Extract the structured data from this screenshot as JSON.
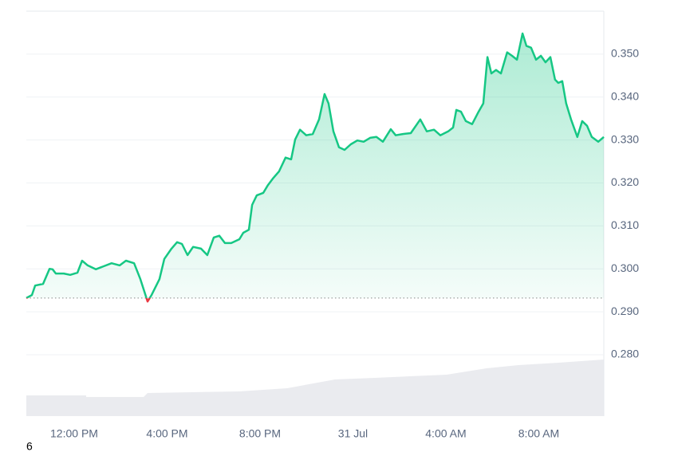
{
  "chart_data": {
    "type": "line",
    "x": [
      9.94,
      10.18,
      10.32,
      10.66,
      10.94,
      11.07,
      11.21,
      11.55,
      11.83,
      12.14,
      12.34,
      12.58,
      12.93,
      13.27,
      13.61,
      13.96,
      14.23,
      14.58,
      14.85,
      15.16,
      15.33,
      15.67,
      15.88,
      16.19,
      16.43,
      16.64,
      16.88,
      17.12,
      17.46,
      17.73,
      18.01,
      18.25,
      18.49,
      18.76,
      19.11,
      19.28,
      19.52,
      19.66,
      19.86,
      20.14,
      20.34,
      20.55,
      20.82,
      21.1,
      21.34,
      21.51,
      21.72,
      21.99,
      22.27,
      22.54,
      22.78,
      22.95,
      23.16,
      23.4,
      23.64,
      23.91,
      24.19,
      24.46,
      24.74,
      25.01,
      25.29,
      25.63,
      25.84,
      26.15,
      26.49,
      26.9,
      27.18,
      27.49,
      27.76,
      28.1,
      28.31,
      28.45,
      28.65,
      28.86,
      29.13,
      29.41,
      29.61,
      29.79,
      29.96,
      30.16,
      30.37,
      30.64,
      30.85,
      31.06,
      31.3,
      31.47,
      31.67,
      31.88,
      32.09,
      32.29,
      32.5,
      32.7,
      32.84,
      33.01,
      33.18,
      33.39,
      33.66,
      33.87,
      34.08,
      34.28,
      34.56,
      34.8
    ],
    "values": [
      0.2932,
      0.2939,
      0.2961,
      0.2965,
      0.3,
      0.2999,
      0.2989,
      0.2989,
      0.2986,
      0.2991,
      0.3019,
      0.3008,
      0.2999,
      0.3006,
      0.3013,
      0.3008,
      0.3019,
      0.3013,
      0.2976,
      0.2924,
      0.2939,
      0.2976,
      0.3023,
      0.3047,
      0.3062,
      0.3058,
      0.3032,
      0.3051,
      0.3047,
      0.3032,
      0.3073,
      0.3077,
      0.306,
      0.306,
      0.3069,
      0.3084,
      0.3091,
      0.3149,
      0.3171,
      0.3177,
      0.3195,
      0.321,
      0.3227,
      0.3259,
      0.3255,
      0.3301,
      0.3324,
      0.3311,
      0.3314,
      0.3348,
      0.3407,
      0.3385,
      0.332,
      0.3283,
      0.3277,
      0.329,
      0.3299,
      0.3296,
      0.3305,
      0.3307,
      0.3296,
      0.3325,
      0.3311,
      0.3314,
      0.3316,
      0.3348,
      0.332,
      0.3324,
      0.3311,
      0.332,
      0.3329,
      0.337,
      0.3366,
      0.3344,
      0.3337,
      0.3366,
      0.3385,
      0.3493,
      0.3455,
      0.3463,
      0.3455,
      0.3504,
      0.3496,
      0.3487,
      0.3548,
      0.3519,
      0.3515,
      0.3487,
      0.3496,
      0.3481,
      0.3493,
      0.3441,
      0.3433,
      0.3437,
      0.3385,
      0.3348,
      0.3307,
      0.3344,
      0.3333,
      0.3307,
      0.3296,
      0.3307
    ],
    "color": "#16c784",
    "negative_color": "#ea3943",
    "xlim": [
      9.94,
      34.8
    ],
    "xticks": [
      {
        "value": 12,
        "label": "12:00 PM"
      },
      {
        "value": 16,
        "label": "4:00 PM"
      },
      {
        "value": 20,
        "label": "8:00 PM"
      },
      {
        "value": 24,
        "label": "31 Jul"
      },
      {
        "value": 28,
        "label": "4:00 AM"
      },
      {
        "value": 32,
        "label": "8:00 AM"
      }
    ],
    "ylim": [
      0.2657,
      0.36
    ],
    "yticks": [
      {
        "value": 0.28,
        "label": "0.280"
      },
      {
        "value": 0.29,
        "label": "0.290"
      },
      {
        "value": 0.3,
        "label": "0.300"
      },
      {
        "value": 0.31,
        "label": "0.310"
      },
      {
        "value": 0.32,
        "label": "0.320"
      },
      {
        "value": 0.33,
        "label": "0.330"
      },
      {
        "value": 0.34,
        "label": "0.340"
      },
      {
        "value": 0.35,
        "label": "0.350"
      }
    ],
    "grid": true,
    "footer_text": "6"
  }
}
